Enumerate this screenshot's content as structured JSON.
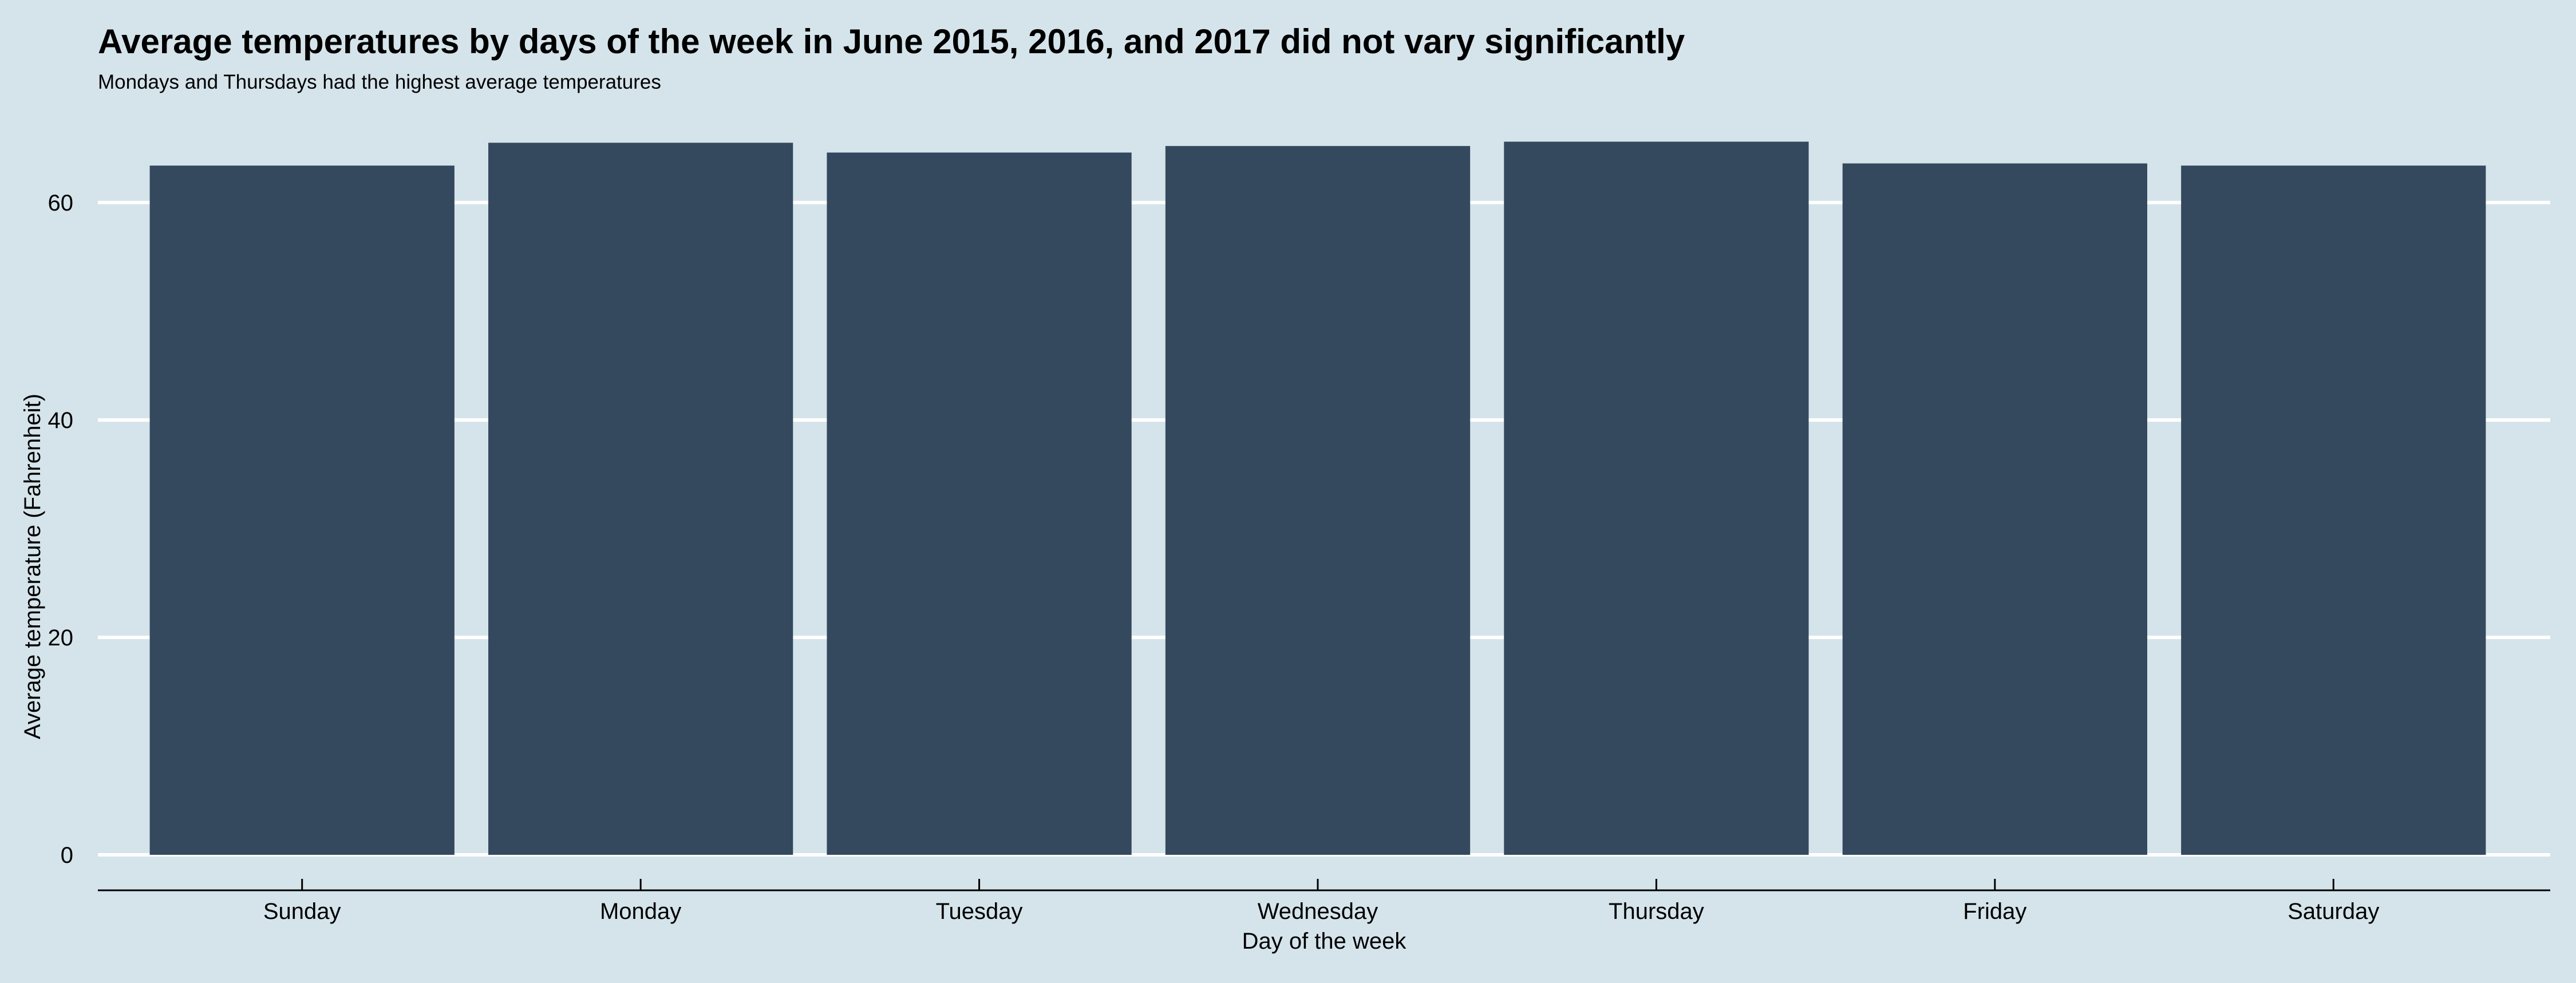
{
  "chart_data": {
    "type": "bar",
    "title": "Average temperatures by days of the week in June 2015, 2016, and 2017 did not vary significantly",
    "subtitle": "Mondays and Thursdays had the highest average temperatures",
    "xlabel": "Day of the week",
    "ylabel": "Average temperature (Fahrenheit)",
    "categories": [
      "Sunday",
      "Monday",
      "Tuesday",
      "Wednesday",
      "Thursday",
      "Friday",
      "Saturday"
    ],
    "values": [
      63.4,
      65.5,
      64.6,
      65.2,
      65.6,
      63.6,
      63.4
    ],
    "ylim": [
      0,
      67.5
    ],
    "yticks": [
      0,
      20,
      40,
      60
    ],
    "grid": "horizontal",
    "legend": "none",
    "colors": {
      "background": "#d5e4eb",
      "bar": "#34495e",
      "grid": "#ffffff",
      "axis": "#000000",
      "text": "#000000"
    }
  }
}
